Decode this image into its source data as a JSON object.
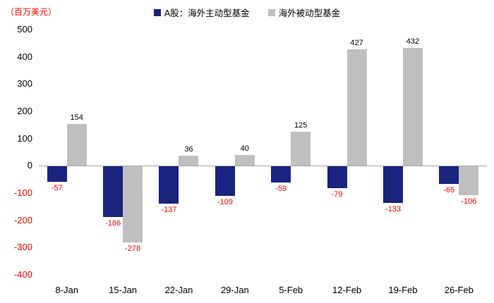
{
  "chart_data": {
    "type": "bar",
    "unit": "（百万美元）",
    "categories": [
      "8-Jan",
      "15-Jan",
      "22-Jan",
      "29-Jan",
      "5-Feb",
      "12-Feb",
      "19-Feb",
      "26-Feb"
    ],
    "series": [
      {
        "name": "A股：海外主动型基金",
        "color": "#1a237e",
        "values": [
          -57,
          -186,
          -137,
          -109,
          -59,
          -79,
          -133,
          -65
        ]
      },
      {
        "name": "海外被动型基金",
        "color": "#bfbfbf",
        "values": [
          154,
          -278,
          36,
          40,
          125,
          427,
          432,
          -106
        ]
      }
    ],
    "ylim": [
      -400,
      500
    ],
    "yticks": [
      500,
      400,
      300,
      200,
      100,
      0,
      -100,
      -200,
      -300,
      -400
    ],
    "grid": "off",
    "legend_position": "top-center",
    "colors": {
      "negative_label": "#ff0000",
      "positive_label": "#000000",
      "zero_line": "#a6a6a6"
    }
  }
}
